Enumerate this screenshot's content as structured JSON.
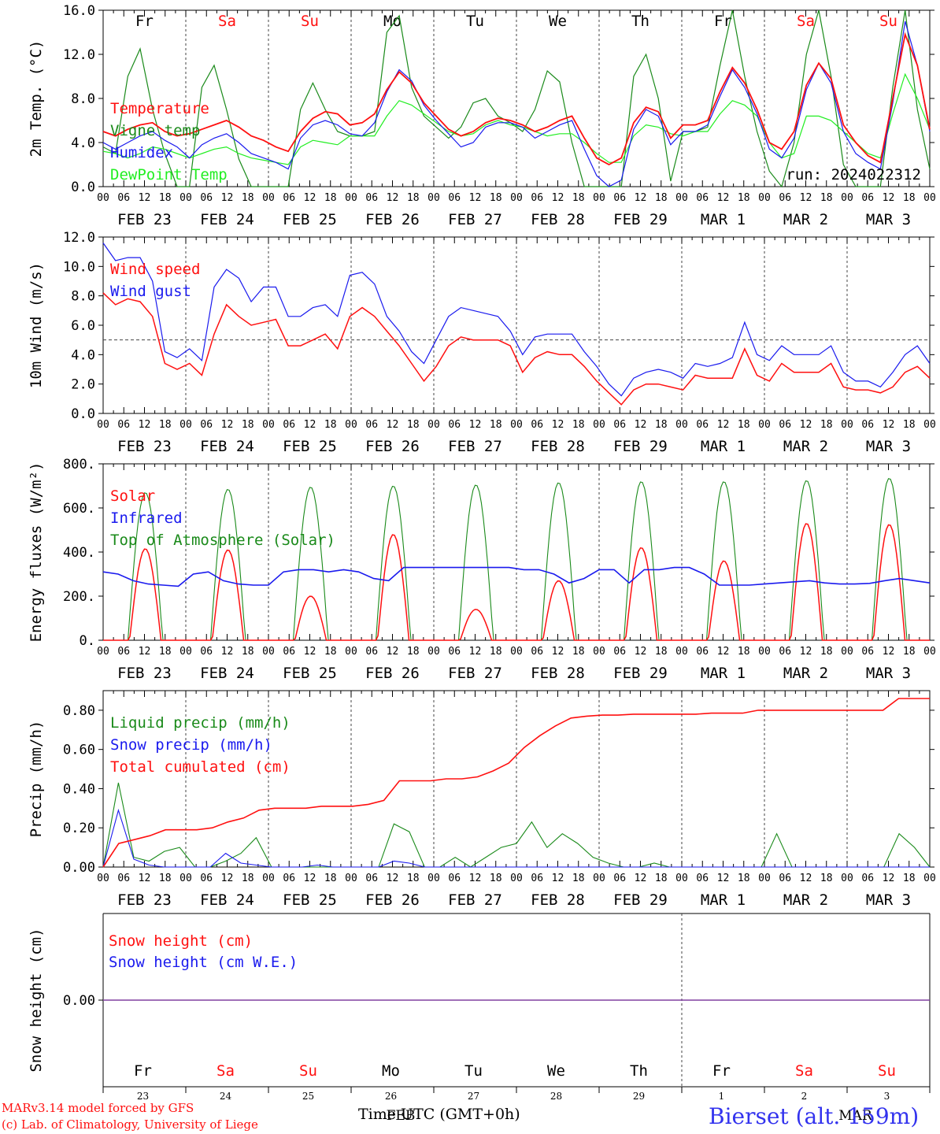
{
  "colors": {
    "red": "#ff1010",
    "green": "#1a8a1a",
    "blue": "#1a1aee",
    "lightgreen": "#22ee22",
    "grey": "#555555",
    "purple": "#8040a0"
  },
  "days": [
    "Fr",
    "Sa",
    "Su",
    "Mo",
    "Tu",
    "We",
    "Th",
    "Fr",
    "Sa",
    "Su"
  ],
  "day_colors": [
    "black",
    "red",
    "red",
    "black",
    "black",
    "black",
    "black",
    "black",
    "red",
    "red"
  ],
  "date_labels": [
    "FEB 23",
    "FEB 24",
    "FEB 25",
    "FEB 26",
    "FEB 27",
    "FEB 28",
    "FEB 29",
    "MAR  1",
    "MAR  2",
    "MAR  3"
  ],
  "hour_labels": [
    "00",
    "06",
    "12",
    "18"
  ],
  "hour_end_label": "00",
  "panel_snow_daynums": [
    "23",
    "24",
    "25",
    "26",
    "27",
    "28",
    "29",
    "1",
    "2",
    "3"
  ],
  "panel_snow_month_labels": [
    "FEB",
    "MAR"
  ],
  "run_label": "run: 2024022312",
  "footer": {
    "model": "MARv3.14 model forced by GFS",
    "lab": "(c) Lab. of Climatology, University of Liege",
    "xlabel": "Time UTC (GMT+0h)",
    "station": "Bierset (alt. 159m)"
  },
  "chart_data": [
    {
      "type": "line",
      "ylabel": "2m Temp. (°C)",
      "ylim": [
        0,
        16
      ],
      "yticks": [
        "0.0",
        "4.0",
        "8.0",
        "12.0",
        "16.0"
      ],
      "legend": [
        "Temperature",
        "Vigne temp",
        "Humidex",
        "DewPoint Temp"
      ],
      "x_unit": "3-hourly steps from FEB 23 00 UTC",
      "series": [
        {
          "name": "Temperature",
          "color": "red",
          "values": [
            5.0,
            4.6,
            5.2,
            5.6,
            5.8,
            5.0,
            4.6,
            4.8,
            5.2,
            5.6,
            6.0,
            5.4,
            4.6,
            4.2,
            3.6,
            3.2,
            5.0,
            6.2,
            6.8,
            6.6,
            5.6,
            5.8,
            6.6,
            8.8,
            10.4,
            9.4,
            7.6,
            6.4,
            5.2,
            4.6,
            5.0,
            5.8,
            6.2,
            6.0,
            5.6,
            5.0,
            5.4,
            6.0,
            6.4,
            4.4,
            2.6,
            2.0,
            2.6,
            5.8,
            7.2,
            6.8,
            4.4,
            5.6,
            5.6,
            6.0,
            8.6,
            10.8,
            9.4,
            7.0,
            4.0,
            3.4,
            5.0,
            9.2,
            11.2,
            9.8,
            5.6,
            4.0,
            2.8,
            2.2,
            8.0,
            13.8,
            11.0,
            5.2
          ]
        },
        {
          "name": "Vigne temp",
          "color": "green",
          "values": [
            3.6,
            3.0,
            10.0,
            12.5,
            7.0,
            3.0,
            0.0,
            0.0,
            9.0,
            11.0,
            7.0,
            2.5,
            0.0,
            0.0,
            0.0,
            0.0,
            7.0,
            9.4,
            7.0,
            5.0,
            4.6,
            4.6,
            5.0,
            14.0,
            15.5,
            9.0,
            6.4,
            5.4,
            4.4,
            5.4,
            7.6,
            8.0,
            6.4,
            5.8,
            5.0,
            7.0,
            10.5,
            9.5,
            4.0,
            0.0,
            0.0,
            0.0,
            0.0,
            10.0,
            12.0,
            8.0,
            0.5,
            5.0,
            5.0,
            5.4,
            11.0,
            16.0,
            10.0,
            5.0,
            1.4,
            0.0,
            4.0,
            12.0,
            16.5,
            10.0,
            2.0,
            0.0,
            0.0,
            0.0,
            9.0,
            16.5,
            7.0,
            1.6
          ]
        },
        {
          "name": "Humidex",
          "color": "blue",
          "values": [
            4.0,
            3.4,
            4.0,
            4.6,
            5.0,
            4.2,
            3.6,
            2.6,
            3.8,
            4.4,
            4.8,
            4.0,
            3.0,
            2.6,
            2.2,
            1.6,
            4.4,
            5.6,
            6.0,
            5.6,
            4.8,
            4.6,
            5.8,
            8.6,
            10.6,
            9.6,
            7.4,
            6.0,
            4.8,
            3.6,
            4.0,
            5.4,
            5.8,
            5.8,
            5.4,
            4.4,
            5.0,
            5.6,
            6.0,
            3.4,
            1.0,
            0.0,
            0.6,
            5.2,
            7.0,
            6.4,
            3.8,
            5.0,
            5.0,
            5.6,
            8.2,
            10.6,
            9.0,
            6.6,
            3.4,
            2.6,
            4.4,
            8.8,
            11.2,
            9.4,
            5.0,
            3.0,
            2.2,
            1.6,
            7.6,
            15.0,
            11.0,
            5.0
          ]
        },
        {
          "name": "DewPoint Temp",
          "color": "lightgreen",
          "values": [
            3.2,
            3.0,
            2.6,
            3.0,
            3.6,
            3.4,
            3.0,
            2.6,
            3.0,
            3.4,
            3.6,
            3.0,
            2.6,
            2.4,
            2.2,
            2.0,
            3.6,
            4.2,
            4.0,
            3.8,
            4.6,
            4.6,
            4.6,
            6.4,
            7.8,
            7.4,
            6.6,
            5.8,
            5.0,
            4.6,
            4.8,
            5.6,
            6.0,
            5.6,
            5.4,
            5.0,
            4.6,
            4.8,
            4.8,
            4.0,
            3.0,
            2.2,
            2.2,
            4.6,
            5.6,
            5.4,
            4.8,
            4.6,
            5.0,
            5.0,
            6.6,
            7.8,
            7.4,
            6.4,
            4.0,
            2.6,
            3.0,
            6.4,
            6.4,
            6.0,
            5.0,
            4.0,
            3.0,
            2.6,
            6.6,
            10.2,
            8.0,
            5.2
          ]
        }
      ]
    },
    {
      "type": "line",
      "ylabel": "10m Wind (m/s)",
      "ylim": [
        0,
        12
      ],
      "yticks": [
        "0.0",
        "2.0",
        "4.0",
        "6.0",
        "8.0",
        "10.0",
        "12.0"
      ],
      "reference_line": 5,
      "legend": [
        "Wind speed",
        "Wind gust"
      ],
      "x_unit": "3-hourly steps from FEB 23 00 UTC",
      "series": [
        {
          "name": "Wind speed",
          "color": "red",
          "values": [
            8.2,
            7.4,
            7.8,
            7.6,
            6.6,
            3.4,
            3.0,
            3.4,
            2.6,
            5.4,
            7.4,
            6.6,
            6.0,
            6.2,
            6.4,
            4.6,
            4.6,
            5.0,
            5.4,
            4.4,
            6.6,
            7.2,
            6.6,
            5.6,
            4.6,
            3.4,
            2.2,
            3.2,
            4.6,
            5.2,
            5.0,
            5.0,
            5.0,
            4.6,
            2.8,
            3.8,
            4.2,
            4.0,
            4.0,
            3.2,
            2.2,
            1.4,
            0.6,
            1.6,
            2.0,
            2.0,
            1.8,
            1.6,
            2.6,
            2.4,
            2.4,
            2.4,
            4.4,
            2.6,
            2.2,
            3.4,
            2.8,
            2.8,
            2.8,
            3.4,
            1.8,
            1.6,
            1.6,
            1.4,
            1.8,
            2.8,
            3.2,
            2.4
          ]
        },
        {
          "name": "Wind gust",
          "color": "blue",
          "values": [
            11.6,
            10.4,
            10.6,
            10.6,
            9.0,
            4.2,
            3.8,
            4.4,
            3.6,
            8.6,
            9.8,
            9.2,
            7.6,
            8.6,
            8.6,
            6.6,
            6.6,
            7.2,
            7.4,
            6.6,
            9.4,
            9.6,
            8.8,
            6.6,
            5.6,
            4.2,
            3.4,
            5.0,
            6.6,
            7.2,
            7.0,
            6.8,
            6.6,
            5.6,
            4.0,
            5.2,
            5.4,
            5.4,
            5.4,
            4.2,
            3.2,
            2.0,
            1.2,
            2.4,
            2.8,
            3.0,
            2.8,
            2.4,
            3.4,
            3.2,
            3.4,
            3.8,
            6.2,
            4.0,
            3.6,
            4.6,
            4.0,
            4.0,
            4.0,
            4.6,
            2.8,
            2.2,
            2.2,
            1.8,
            2.8,
            4.0,
            4.6,
            3.4
          ]
        }
      ]
    },
    {
      "type": "line",
      "ylabel": "Energy fluxes (W/m²)",
      "ylim": [
        0,
        800
      ],
      "yticks": [
        "0.",
        "200.",
        "400.",
        "600.",
        "800."
      ],
      "legend": [
        "Solar",
        "Infrared",
        "Top of Atmosphere (Solar)"
      ],
      "series": [
        {
          "name": "Solar",
          "color": "red",
          "peaks": [
            415,
            410,
            200,
            480,
            140,
            270,
            420,
            360,
            530,
            525
          ]
        },
        {
          "name": "Top of Atmosphere (Solar)",
          "color": "green",
          "peaks": [
            670,
            685,
            695,
            700,
            705,
            715,
            720,
            720,
            725,
            735
          ]
        },
        {
          "name": "Infrared",
          "color": "blue",
          "values": [
            310,
            300,
            270,
            255,
            250,
            245,
            300,
            310,
            270,
            255,
            250,
            250,
            310,
            320,
            320,
            310,
            320,
            310,
            280,
            270,
            330,
            330,
            330,
            330,
            330,
            330,
            330,
            330,
            320,
            320,
            300,
            260,
            280,
            320,
            320,
            260,
            320,
            320,
            330,
            330,
            300,
            250,
            250,
            250,
            255,
            260,
            265,
            270,
            260,
            255,
            255,
            258,
            270,
            280,
            270,
            260
          ]
        }
      ]
    },
    {
      "type": "line",
      "ylabel": "Precip (mm/h)",
      "ylim": [
        0,
        0.9
      ],
      "yticks": [
        "0.00",
        "0.20",
        "0.40",
        "0.60",
        "0.80"
      ],
      "legend": [
        "Liquid precip (mm/h)",
        "Snow precip (mm/h)",
        "Total cumulated (cm)"
      ],
      "series": [
        {
          "name": "Total cumulated (cm)",
          "color": "red",
          "values": [
            0.0,
            0.12,
            0.14,
            0.16,
            0.19,
            0.19,
            0.19,
            0.2,
            0.23,
            0.25,
            0.29,
            0.3,
            0.3,
            0.3,
            0.31,
            0.31,
            0.31,
            0.32,
            0.34,
            0.44,
            0.44,
            0.44,
            0.45,
            0.45,
            0.46,
            0.49,
            0.53,
            0.61,
            0.67,
            0.72,
            0.76,
            0.77,
            0.775,
            0.775,
            0.78,
            0.78,
            0.78,
            0.78,
            0.78,
            0.785,
            0.785,
            0.785,
            0.8,
            0.8,
            0.8,
            0.8,
            0.8,
            0.8,
            0.8,
            0.8,
            0.8,
            0.86,
            0.86,
            0.86
          ]
        },
        {
          "name": "Liquid precip (mm/h)",
          "color": "green",
          "values": [
            0.0,
            0.43,
            0.05,
            0.03,
            0.08,
            0.1,
            0.0,
            0.0,
            0.03,
            0.07,
            0.15,
            0.0,
            0.0,
            0.0,
            0.0,
            0.0,
            0.0,
            0.0,
            0.0,
            0.22,
            0.18,
            0.0,
            0.0,
            0.05,
            0.0,
            0.05,
            0.1,
            0.12,
            0.23,
            0.1,
            0.17,
            0.12,
            0.05,
            0.02,
            0.0,
            0.0,
            0.02,
            0.0,
            0.0,
            0.0,
            0.0,
            0.0,
            0.0,
            0.0,
            0.17,
            0.0,
            0.0,
            0.0,
            0.0,
            0.0,
            0.0,
            0.0,
            0.17,
            0.1,
            0.0
          ]
        },
        {
          "name": "Snow precip (mm/h)",
          "color": "blue",
          "values": [
            0.0,
            0.29,
            0.04,
            0.01,
            0.0,
            0.0,
            0.0,
            0.0,
            0.07,
            0.02,
            0.01,
            0.0,
            0.0,
            0.0,
            0.01,
            0.0,
            0.0,
            0.0,
            0.0,
            0.03,
            0.02,
            0.0,
            0.0,
            0.0,
            0.0,
            0.0,
            0.0,
            0.0,
            0.0,
            0.0,
            0.0,
            0.0,
            0.0,
            0.0,
            0.0,
            0.0,
            0.0,
            0.0,
            0.0,
            0.0,
            0.0,
            0.0,
            0.0,
            0.0,
            0.0,
            0.0,
            0.0,
            0.0,
            0.0,
            0.0,
            0.0,
            0.0,
            0.0,
            0.0,
            0.0
          ]
        }
      ]
    },
    {
      "type": "line",
      "ylabel": "Snow height (cm)",
      "yticks": [
        "0.00"
      ],
      "legend": [
        "Snow height (cm)",
        "Snow height (cm W.E.)"
      ],
      "series": [
        {
          "name": "Snow height (cm)",
          "color": "red",
          "values": [
            0,
            0
          ]
        },
        {
          "name": "Snow height (cm W.E.)",
          "color": "blue",
          "values": [
            0,
            0
          ]
        }
      ]
    }
  ]
}
